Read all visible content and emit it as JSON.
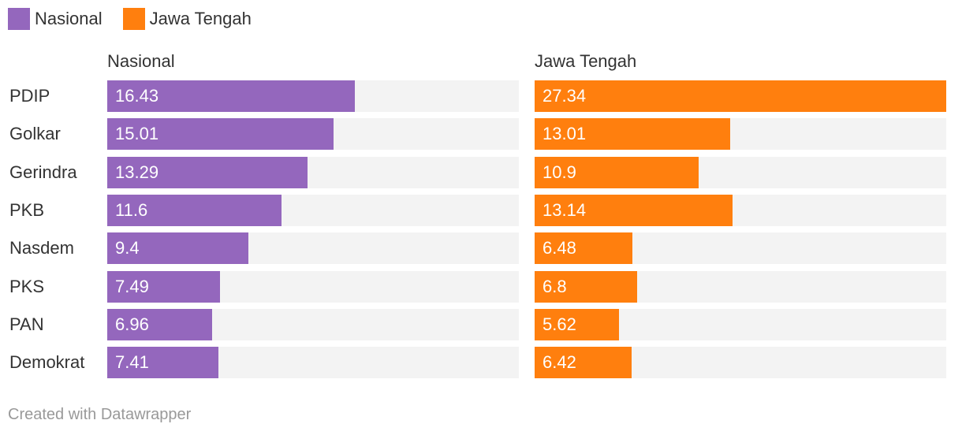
{
  "legend": {
    "items": [
      {
        "label": "Nasional",
        "color": "#9467bd"
      },
      {
        "label": "Jawa Tengah",
        "color": "#ff7f0e"
      }
    ]
  },
  "chart_data": {
    "type": "bar",
    "orientation": "horizontal",
    "categories": [
      "PDIP",
      "Golkar",
      "Gerindra",
      "PKB",
      "Nasdem",
      "PKS",
      "PAN",
      "Demokrat"
    ],
    "series": [
      {
        "name": "Nasional",
        "color": "#9467bd",
        "values": [
          16.43,
          15.01,
          13.29,
          11.6,
          9.4,
          7.49,
          6.96,
          7.41
        ]
      },
      {
        "name": "Jawa Tengah",
        "color": "#ff7f0e",
        "values": [
          27.34,
          13.01,
          10.9,
          13.14,
          6.48,
          6.8,
          5.62,
          6.42
        ]
      }
    ],
    "value_labels": {
      "Nasional": [
        "16.43",
        "15.01",
        "13.29",
        "11.6",
        "9.4",
        "7.49",
        "6.96",
        "7.41"
      ],
      "Jawa Tengah": [
        "27.34",
        "13.01",
        "10.9",
        "13.14",
        "6.48",
        "6.8",
        "5.62",
        "6.42"
      ]
    },
    "xlim": [
      0,
      27.34
    ],
    "title": "",
    "xlabel": "",
    "ylabel": "",
    "legend_position": "top-left",
    "grid": false
  },
  "footer": {
    "credit": "Created with Datawrapper"
  }
}
